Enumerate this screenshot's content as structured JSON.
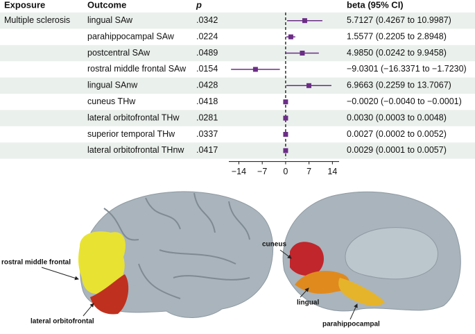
{
  "chart_data": {
    "type": "forest",
    "headers": {
      "exposure": "Exposure",
      "outcome": "Outcome",
      "p": "p",
      "beta": "beta (95% CI)"
    },
    "exposure": "Multiple sclerosis",
    "categories": [
      "lingual SAw",
      "parahippocampal SAw",
      "postcentral SAw",
      "rostral middle frontal SAw",
      "lingual SAnw",
      "cuneus THw",
      "lateral orbitofrontal THw",
      "superior temporal THw",
      "lateral orbitofrontal THnw"
    ],
    "p": [
      ".0342",
      ".0224",
      ".0489",
      ".0154",
      ".0428",
      ".0418",
      ".0281",
      ".0337",
      ".0417"
    ],
    "values": [
      5.7127,
      1.5577,
      4.985,
      -9.0301,
      6.9663,
      -0.002,
      0.003,
      0.0027,
      0.0029
    ],
    "lower": [
      0.4267,
      0.2205,
      0.0242,
      -16.3371,
      0.2259,
      -0.004,
      0.0003,
      0.0002,
      0.0001
    ],
    "upper": [
      10.9987,
      2.8948,
      9.9458,
      -1.723,
      13.7067,
      -0.0001,
      0.0048,
      0.0052,
      0.0057
    ],
    "value_labels": [
      "5.7127 (0.4267 to 10.9987)",
      "1.5577 (0.2205 to 2.8948)",
      "4.9850 (0.0242 to 9.9458)",
      "−9.0301 (−16.3371 to −1.7230)",
      "6.9663 (0.2259 to 13.7067)",
      "−0.0020 (−0.0040 to −0.0001)",
      "0.0030 (0.0003 to 0.0048)",
      "0.0027 (0.0002 to 0.0052)",
      "0.0029 (0.0001 to 0.0057)"
    ],
    "color": "#6b2d86",
    "xlim": [
      -17,
      16
    ],
    "xticks": [
      {
        "value": -14,
        "label": "−14"
      },
      {
        "value": -7,
        "label": "−7"
      },
      0,
      7,
      14
    ],
    "annotations": [
      "rostral middle frontal",
      "lateral orbitofrontal",
      "cuneus",
      "lingual",
      "parahippocampal"
    ]
  }
}
